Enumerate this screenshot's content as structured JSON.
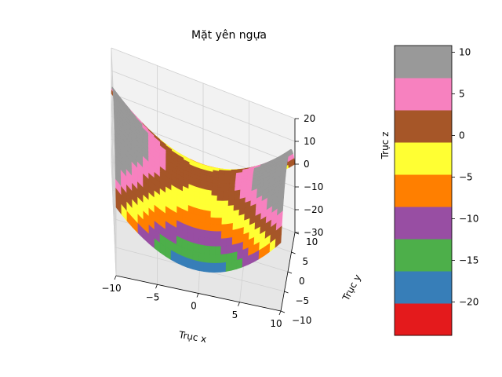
{
  "chart_data": {
    "type": "surface",
    "title": "Mặt yên ngựa",
    "xlabel": "Trục x",
    "ylabel": "Trục y",
    "zlabel": "Trục z",
    "function": "z = x^2/5 - y^2/5",
    "xlim": [
      -10,
      10
    ],
    "ylim": [
      -10,
      10
    ],
    "zlim": [
      -30,
      20
    ],
    "x_ticks": [
      -10,
      -5,
      0,
      5,
      10
    ],
    "y_ticks": [
      -10,
      -5,
      0,
      5,
      10
    ],
    "z_ticks": [
      -30,
      -20,
      -10,
      0,
      10,
      20
    ],
    "x_tick_labels": [
      "−10",
      "−5",
      "0",
      "5",
      "10"
    ],
    "y_tick_labels": [
      "−10",
      "−5",
      "0",
      "5",
      "10"
    ],
    "z_tick_labels": [
      "−30",
      "−20",
      "−10",
      "0",
      "10",
      "20"
    ],
    "colormap": "Set1",
    "colorbar": {
      "range": [
        -24,
        10.8
      ],
      "ticks": [
        -20,
        -15,
        -10,
        -5,
        0,
        5,
        10
      ],
      "tick_labels": [
        "−20",
        "−15",
        "−10",
        "−5",
        "0",
        "5",
        "10"
      ],
      "colors": [
        "#e41a1c",
        "#377eb8",
        "#4daf4a",
        "#984ea3",
        "#ff7f00",
        "#ffff33",
        "#a65628",
        "#f781bf",
        "#999999"
      ]
    },
    "grid": true
  }
}
